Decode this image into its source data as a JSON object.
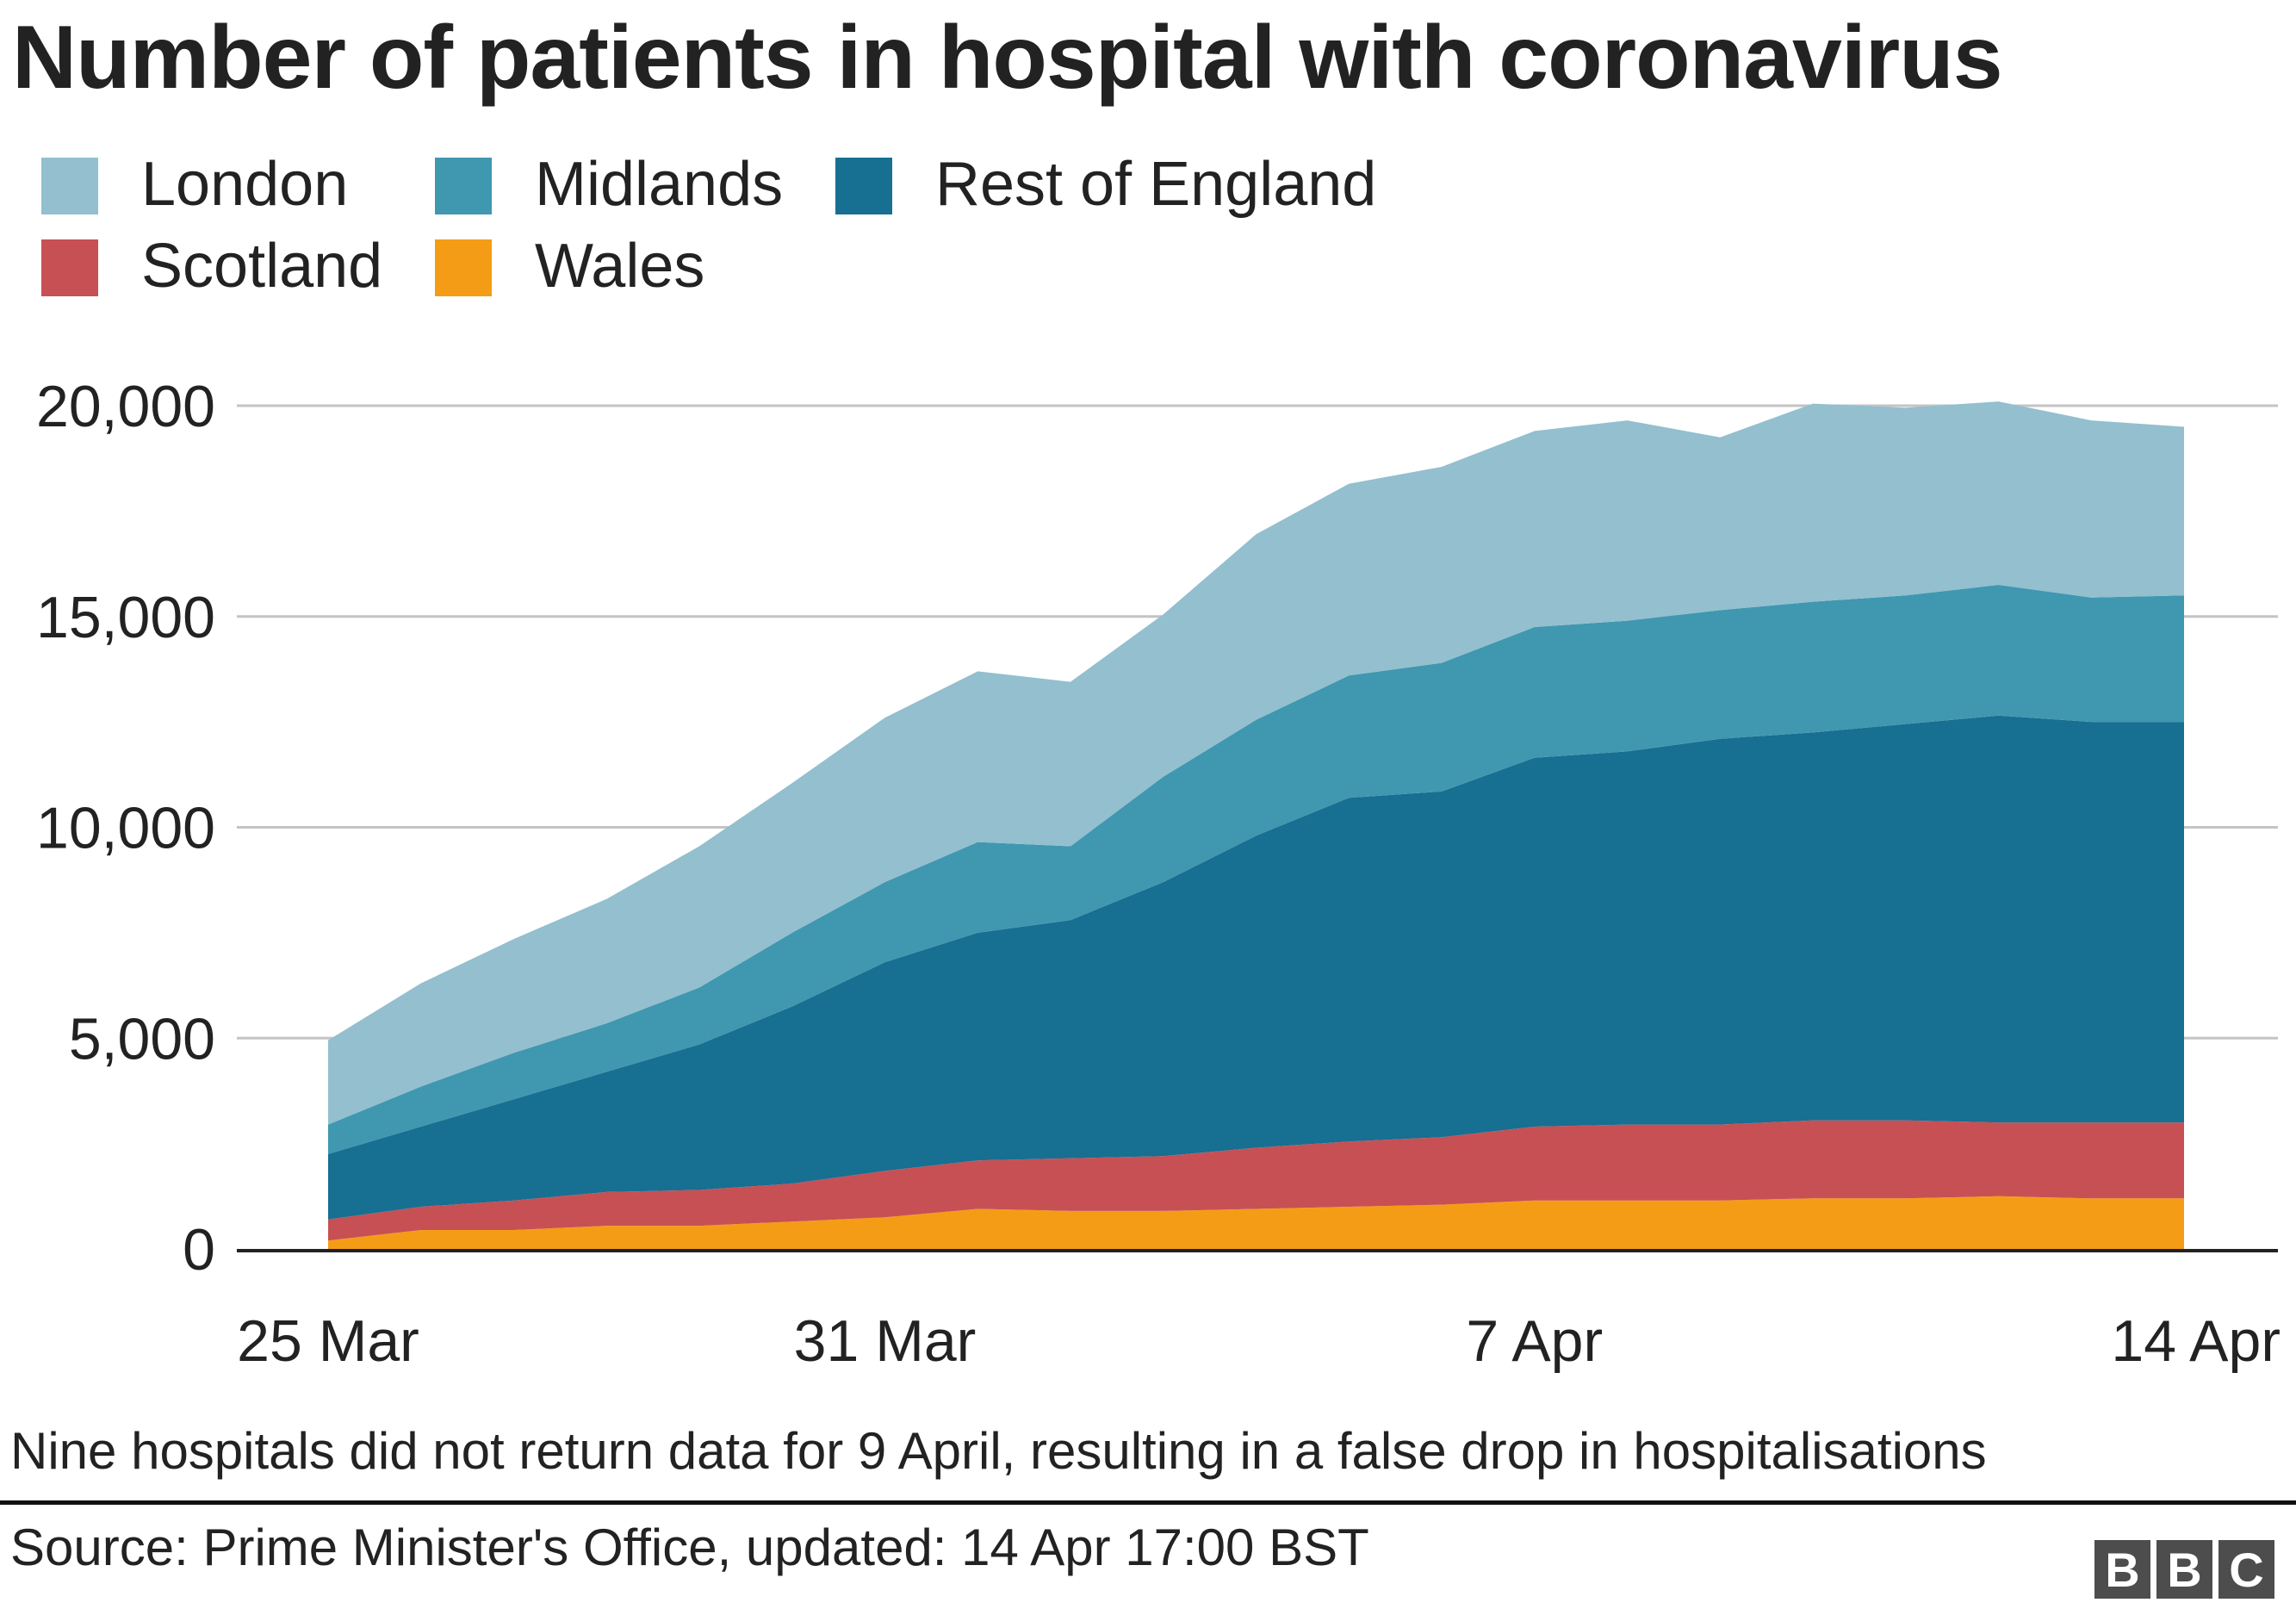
{
  "header": {
    "title": "Number of patients in hospital with coronavirus"
  },
  "legend": [
    {
      "label": "London",
      "color": "#93bfcf"
    },
    {
      "label": "Midlands",
      "color": "#4097b0"
    },
    {
      "label": "Rest of England",
      "color": "#176f91"
    },
    {
      "label": "Scotland",
      "color": "#c75055"
    },
    {
      "label": "Wales",
      "color": "#f59c16"
    }
  ],
  "chart_data": {
    "type": "area",
    "stacked": true,
    "title": "Number of patients in hospital with coronavirus",
    "xlabel": "",
    "ylabel": "",
    "ylim": [
      0,
      20000
    ],
    "yticks": [
      0,
      5000,
      10000,
      15000,
      20000
    ],
    "ytick_labels": [
      "0",
      "5,000",
      "10,000",
      "15,000",
      "20,000"
    ],
    "xtick_labels": [
      {
        "label": "25 Mar",
        "index": 0
      },
      {
        "label": "31 Mar",
        "index": 6
      },
      {
        "label": "7 Apr",
        "index": 13
      },
      {
        "label": "14 Apr",
        "index": 20
      }
    ],
    "grid": true,
    "legend_position": "top-left",
    "x": [
      "25 Mar",
      "26 Mar",
      "27 Mar",
      "28 Mar",
      "29 Mar",
      "30 Mar",
      "31 Mar",
      "1 Apr",
      "2 Apr",
      "3 Apr",
      "4 Apr",
      "5 Apr",
      "6 Apr",
      "7 Apr",
      "8 Apr",
      "9 Apr",
      "10 Apr",
      "11 Apr",
      "12 Apr",
      "13 Apr",
      "14 Apr"
    ],
    "series": [
      {
        "name": "Wales",
        "color": "#f59c16",
        "values": [
          200,
          450,
          450,
          550,
          550,
          650,
          750,
          950,
          900,
          900,
          950,
          1000,
          1050,
          1150,
          1150,
          1150,
          1200,
          1200,
          1250,
          1200,
          1200
        ]
      },
      {
        "name": "Scotland",
        "color": "#c75055",
        "values": [
          500,
          550,
          700,
          800,
          850,
          900,
          1100,
          1150,
          1250,
          1300,
          1450,
          1550,
          1600,
          1750,
          1800,
          1800,
          1850,
          1850,
          1750,
          1800,
          1800
        ]
      },
      {
        "name": "Rest of England",
        "color": "#176f91",
        "values": [
          1550,
          1900,
          2400,
          2850,
          3450,
          4200,
          4950,
          5400,
          5650,
          6500,
          7400,
          8150,
          8200,
          8750,
          8850,
          9150,
          9200,
          9400,
          9650,
          9500,
          9500
        ]
      },
      {
        "name": "Midlands",
        "color": "#4097b0",
        "values": [
          700,
          950,
          1100,
          1150,
          1350,
          1750,
          1900,
          2150,
          1750,
          2500,
          2750,
          2900,
          3050,
          3100,
          3100,
          3050,
          3100,
          3050,
          3100,
          2950,
          3000
        ]
      },
      {
        "name": "London",
        "color": "#93bfcf",
        "values": [
          2000,
          2450,
          2700,
          2950,
          3350,
          3550,
          3900,
          4050,
          3900,
          3850,
          4400,
          4550,
          4650,
          4650,
          4750,
          4100,
          4700,
          4450,
          4350,
          4200,
          4000
        ]
      }
    ],
    "annotation": "Nine hospitals did not return data for 9 April, resulting in a false drop in hospitalisations"
  },
  "footer": {
    "note": "Nine hospitals did not return data for 9 April, resulting in a false drop in hospitalisations",
    "source": "Source: Prime Minister's Office, updated: 14 Apr 17:00 BST",
    "logo_letters": [
      "B",
      "B",
      "C"
    ]
  }
}
